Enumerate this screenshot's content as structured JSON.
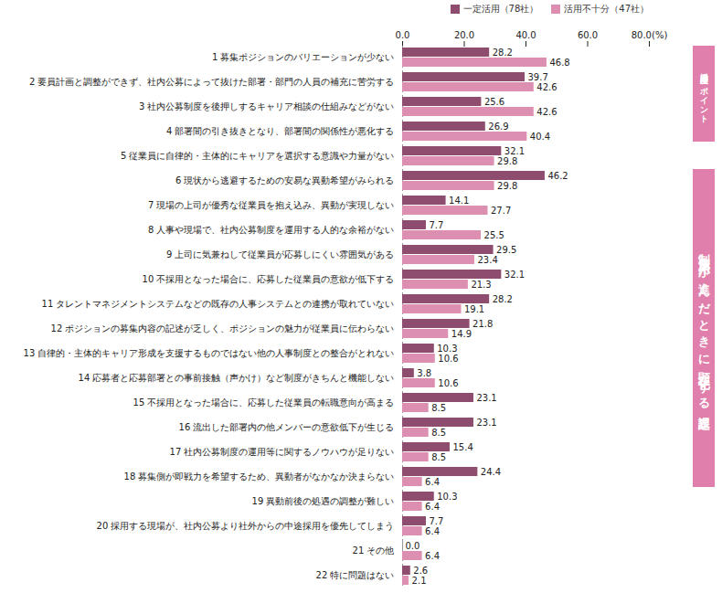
{
  "chart_data": {
    "type": "bar",
    "orientation": "horizontal",
    "categories": [
      "1 募集ポジションのバリエーションが少ない",
      "2 要員計画と調整ができず、社内公募によって抜けた部署・部門の人員の補充に苦労する",
      "3 社内公募制度を後押しするキャリア相談の仕組みなどがない",
      "4 部署間の引き抜きとなり、部署間の関係性が悪化する",
      "5 従業員に自律的・主体的にキャリアを選択する意識や力量がない",
      "6 現状から逃避するための安易な異動希望がみられる",
      "7 現場の上司が優秀な従業員を抱え込み、異動が実現しない",
      "8 人事や現場で、社内公募制度を運用する人的な余裕がない",
      "9 上司に気兼ねして従業員が応募しにくい雰囲気がある",
      "10 不採用となった場合に、応募した従業員の意欲が低下する",
      "11 タレントマネジメントシステムなどの既存の人事システムとの連携が取れていない",
      "12 ポジションの募集内容の記述が乏しく、ポジションの魅力が従業員に伝わらない",
      "13 自律的・主体的キャリア形成を支援するものではない他の人事制度との整合がとれない",
      "14 応募者と応募部署との事前接触（声かけ）など制度がきちんと機能しない",
      "15 不採用となった場合に、応募した従業員の転職意向が高まる",
      "16 流出した部署内の他メンバーの意欲低下が生じる",
      "17 社内公募制度の運用等に関するノウハウが足りない",
      "18 募集側が即戦力を希望するため、異動者がなかなか決まらない",
      "19 異動前後の処遇の調整が難しい",
      "20 採用する現場が、社内公募より社外からの中途採用を優先してしまう",
      "21 その他",
      "22 特に問題はない"
    ],
    "series": [
      {
        "name": "一定活用（78社）",
        "color": "#8e4d6e",
        "values": [
          28.2,
          39.7,
          25.6,
          26.9,
          32.1,
          46.2,
          14.1,
          7.7,
          29.5,
          32.1,
          28.2,
          21.8,
          10.3,
          3.8,
          23.1,
          23.1,
          15.4,
          24.4,
          10.3,
          7.7,
          0.0,
          2.6
        ],
        "value_labels": [
          "28.2",
          "39.7",
          "25.6",
          "26.9",
          "32.1",
          "46.2",
          "14.1",
          "7.7",
          "29.5",
          "32.1",
          "28.2",
          "21.8",
          "10.3",
          "3.8",
          "23.1",
          "23.1",
          "15.4",
          "24.4",
          "10.3",
          "7.7",
          "0.0",
          "2.6"
        ]
      },
      {
        "name": "活用不十分（47社）",
        "color": "#dc8fb0",
        "values": [
          46.8,
          42.6,
          42.6,
          40.4,
          29.8,
          29.8,
          27.7,
          25.5,
          23.4,
          21.3,
          19.1,
          14.9,
          10.6,
          10.6,
          8.5,
          8.5,
          8.5,
          6.4,
          6.4,
          6.4,
          6.4,
          2.1
        ],
        "value_labels": [
          "46.8",
          "42.6",
          "42.6",
          "40.4",
          "29.8",
          "29.8",
          "27.7",
          "25.5",
          "23.4",
          "21.3",
          "19.1",
          "14.9",
          "10.6",
          "10.6",
          "8.5",
          "8.5",
          "8.5",
          "6.4",
          "6.4",
          "6.4",
          "6.4",
          "2.1"
        ]
      }
    ],
    "xlim": [
      0,
      80
    ],
    "xticks": [
      {
        "value": 0,
        "label": "0.0"
      },
      {
        "value": 20,
        "label": "20.0"
      },
      {
        "value": 40,
        "label": "40.0"
      },
      {
        "value": 60,
        "label": "60.0"
      },
      {
        "value": 80,
        "label": "80.0(%)"
      }
    ],
    "grid": false,
    "data_labels": true,
    "legend": "top-right",
    "annotations": [
      {
        "text": "活用度向上のポイント",
        "start": 1,
        "end": 4
      },
      {
        "text": "制度活用が進んだときに顕在化する課題",
        "start": 6,
        "end": 18
      }
    ]
  }
}
